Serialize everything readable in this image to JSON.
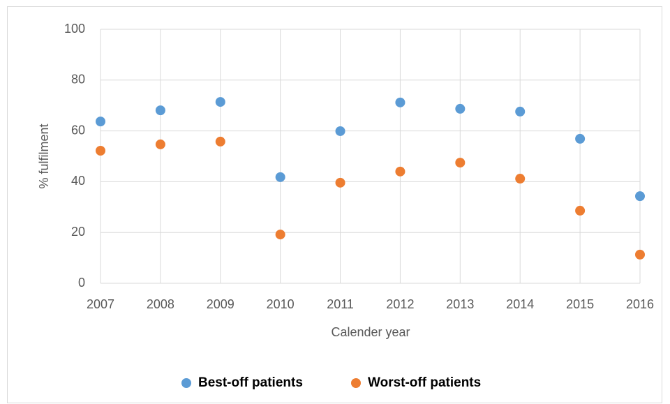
{
  "chart_data": {
    "type": "scatter",
    "x_label": "Calender year",
    "y_label": "% fulfilment",
    "x": [
      2007,
      2008,
      2009,
      2010,
      2011,
      2012,
      2013,
      2014,
      2015,
      2016
    ],
    "series": [
      {
        "name": "Best-off patients",
        "color": "#5b9bd5",
        "values": [
          63.7,
          68.1,
          71.4,
          41.8,
          59.9,
          71.2,
          68.7,
          67.6,
          56.9,
          34.3
        ]
      },
      {
        "name": "Worst-off patients",
        "color": "#ed7d31",
        "values": [
          52.2,
          54.7,
          55.8,
          19.2,
          39.6,
          44.0,
          47.5,
          41.2,
          28.6,
          11.3
        ]
      }
    ],
    "xlim": [
      2007,
      2016
    ],
    "xticks": [
      2007,
      2008,
      2009,
      2010,
      2011,
      2012,
      2013,
      2014,
      2015,
      2016
    ],
    "ylim": [
      0,
      100
    ],
    "yticks": [
      0,
      20,
      40,
      60,
      80,
      100
    ],
    "grid": true,
    "legend": "bottom"
  }
}
